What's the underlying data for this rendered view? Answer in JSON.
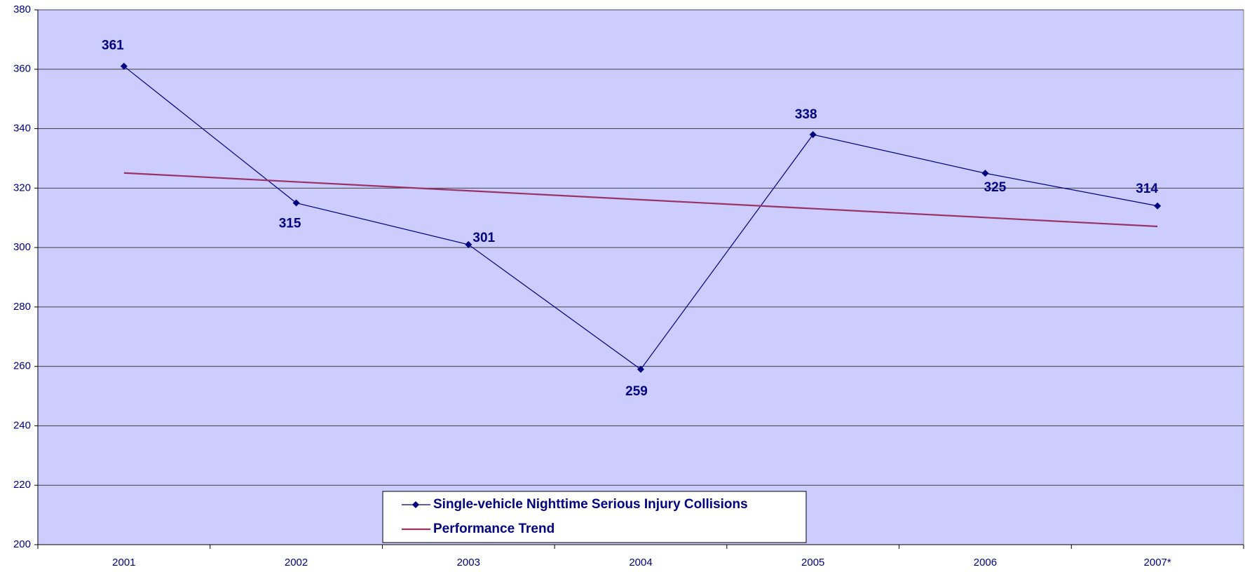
{
  "chart_data": {
    "type": "line",
    "categories": [
      "2001",
      "2002",
      "2003",
      "2004",
      "2005",
      "2006",
      "2007*"
    ],
    "series": [
      {
        "name": "Single-vehicle Nighttime Serious Injury Collisions",
        "color": "#000080",
        "values": [
          361,
          315,
          301,
          259,
          338,
          325,
          314
        ],
        "markers": true,
        "data_labels": true
      },
      {
        "name": "Performance Trend",
        "color": "#993366",
        "values": [
          325.1,
          322.1,
          319.1,
          316.1,
          313.1,
          310.1,
          307.1
        ]
      }
    ],
    "ylim": [
      200,
      380
    ],
    "yticks": [
      200,
      220,
      240,
      260,
      280,
      300,
      320,
      340,
      360,
      380
    ],
    "grid": true,
    "background": "#ccccff",
    "legend": "bottom"
  }
}
